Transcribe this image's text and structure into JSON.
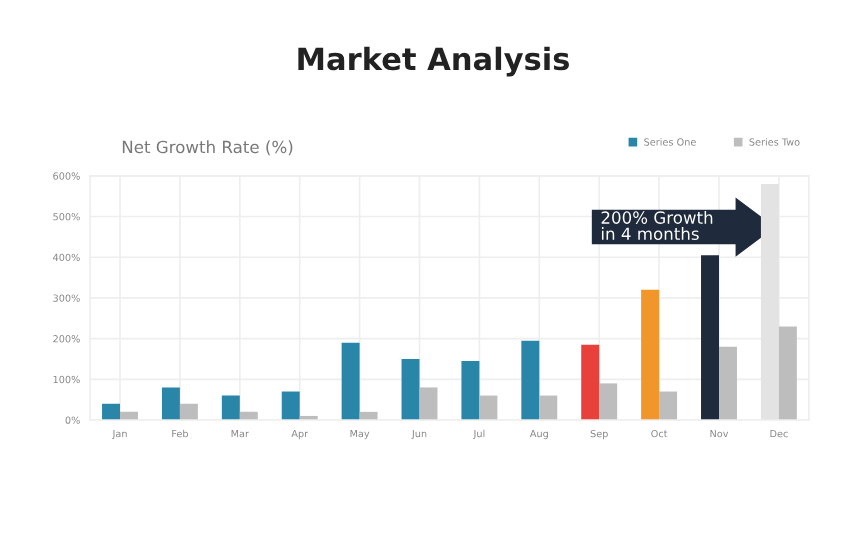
{
  "chart_data": {
    "type": "bar",
    "title": "Market Analysis",
    "subtitle": "Net Growth Rate (%)",
    "categories": [
      "Jan",
      "Feb",
      "Mar",
      "Apr",
      "May",
      "Jun",
      "Jul",
      "Aug",
      "Sep",
      "Oct",
      "Nov",
      "Dec"
    ],
    "series": [
      {
        "name": "Series One",
        "color": "#2a86a8",
        "colors": [
          "#2a86a8",
          "#2a86a8",
          "#2a86a8",
          "#2a86a8",
          "#2a86a8",
          "#2a86a8",
          "#2a86a8",
          "#2a86a8",
          "#e8413c",
          "#f0962a",
          "#1f2a3c",
          "#e3e3e3"
        ],
        "values": [
          40,
          80,
          60,
          70,
          190,
          150,
          145,
          195,
          185,
          320,
          405,
          580
        ]
      },
      {
        "name": "Series Two",
        "color": "#bdbdbd",
        "values": [
          20,
          40,
          20,
          10,
          20,
          80,
          60,
          60,
          90,
          70,
          180,
          230
        ]
      }
    ],
    "ylim": [
      0,
      600
    ],
    "yticks": [
      {
        "value": 0,
        "label": "0%"
      },
      {
        "value": 100,
        "label": "100%"
      },
      {
        "value": 200,
        "label": "200%"
      },
      {
        "value": 300,
        "label": "300%"
      },
      {
        "value": 400,
        "label": "400%"
      },
      {
        "value": 500,
        "label": "500%"
      },
      {
        "value": 600,
        "label": "600%"
      }
    ],
    "annotations": [
      "200% Growth\nin 4 months"
    ],
    "grid": true,
    "legend": "top right"
  }
}
